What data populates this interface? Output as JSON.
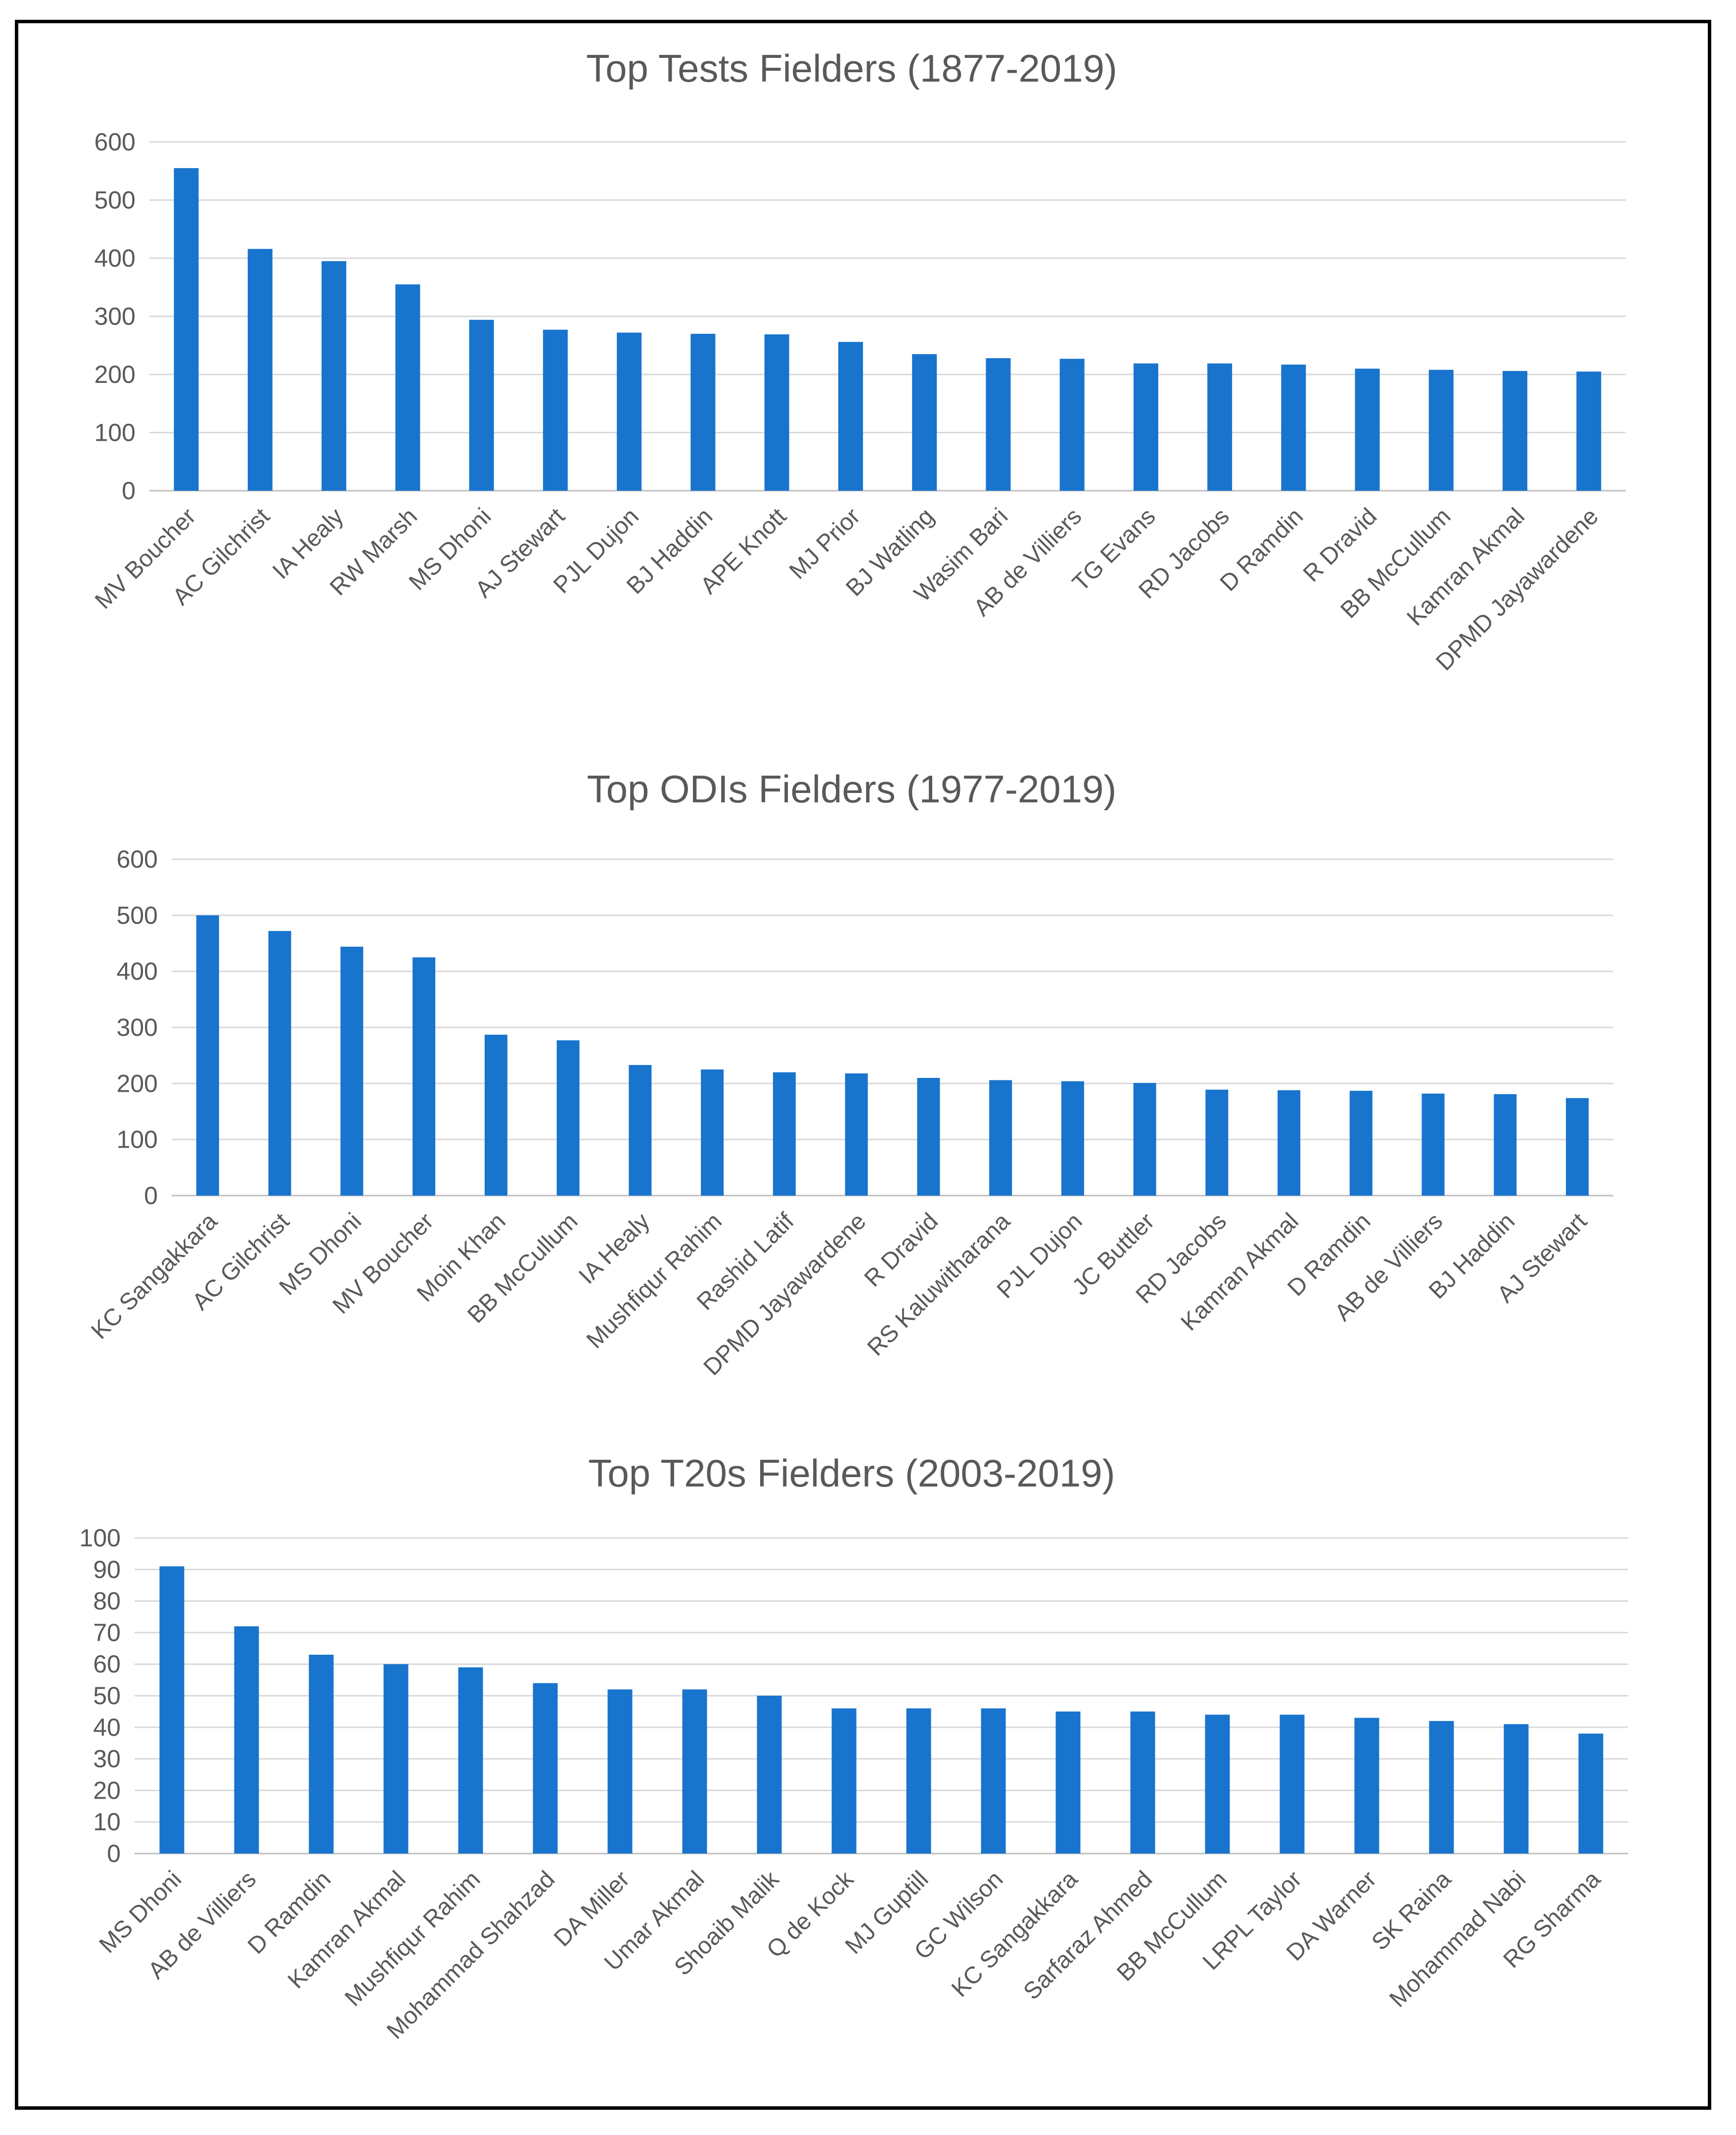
{
  "chart_data": [
    {
      "type": "bar",
      "title": "Top Tests Fielders (1877-2019)",
      "ylim": [
        0,
        600
      ],
      "yticks": [
        0,
        100,
        200,
        300,
        400,
        500,
        600
      ],
      "grid": true,
      "color": "#1874cd",
      "categories": [
        "MV Boucher",
        "AC Gilchrist",
        "IA Healy",
        "RW Marsh",
        "MS Dhoni",
        "AJ Stewart",
        "PJL Dujon",
        "BJ Haddin",
        "APE Knott",
        "MJ Prior",
        "BJ Watling",
        "Wasim Bari",
        "AB de Villiers",
        "TG Evans",
        "RD Jacobs",
        "D Ramdin",
        "R Dravid",
        "BB McCullum",
        "Kamran Akmal",
        "DPMD Jayawardene"
      ],
      "values": [
        555,
        416,
        395,
        355,
        294,
        277,
        272,
        270,
        269,
        256,
        235,
        228,
        227,
        219,
        219,
        217,
        210,
        208,
        206,
        205
      ]
    },
    {
      "type": "bar",
      "title": "Top ODIs Fielders (1977-2019)",
      "ylim": [
        0,
        600
      ],
      "yticks": [
        0,
        100,
        200,
        300,
        400,
        500,
        600
      ],
      "grid": true,
      "color": "#1874cd",
      "categories": [
        "KC Sangakkara",
        "AC Gilchrist",
        "MS Dhoni",
        "MV Boucher",
        "Moin Khan",
        "BB McCullum",
        "IA Healy",
        "Mushfiqur Rahim",
        "Rashid Latif",
        "DPMD Jayawardene",
        "R Dravid",
        "RS Kaluwitharana",
        "PJL Dujon",
        "JC Buttler",
        "RD Jacobs",
        "Kamran Akmal",
        "D Ramdin",
        "AB de Villiers",
        "BJ Haddin",
        "AJ Stewart"
      ],
      "values": [
        500,
        472,
        444,
        425,
        287,
        277,
        233,
        225,
        220,
        218,
        210,
        206,
        204,
        201,
        189,
        188,
        187,
        182,
        181,
        174
      ]
    },
    {
      "type": "bar",
      "title": "Top T20s Fielders (2003-2019)",
      "ylim": [
        0,
        100
      ],
      "yticks": [
        0,
        10,
        20,
        30,
        40,
        50,
        60,
        70,
        80,
        90,
        100
      ],
      "grid": true,
      "color": "#1874cd",
      "categories": [
        "MS Dhoni",
        "AB de Villiers",
        "D Ramdin",
        "Kamran Akmal",
        "Mushfiqur Rahim",
        "Mohammad Shahzad",
        "DA Miller",
        "Umar Akmal",
        "Shoaib Malik",
        "Q de Kock",
        "MJ Guptill",
        "GC Wilson",
        "KC Sangakkara",
        "Sarfaraz Ahmed",
        "BB McCullum",
        "LRPL Taylor",
        "DA Warner",
        "SK Raina",
        "Mohammad Nabi",
        "RG Sharma"
      ],
      "values": [
        91,
        72,
        63,
        60,
        59,
        54,
        52,
        52,
        50,
        46,
        46,
        46,
        45,
        45,
        44,
        44,
        43,
        42,
        41,
        38
      ]
    }
  ]
}
